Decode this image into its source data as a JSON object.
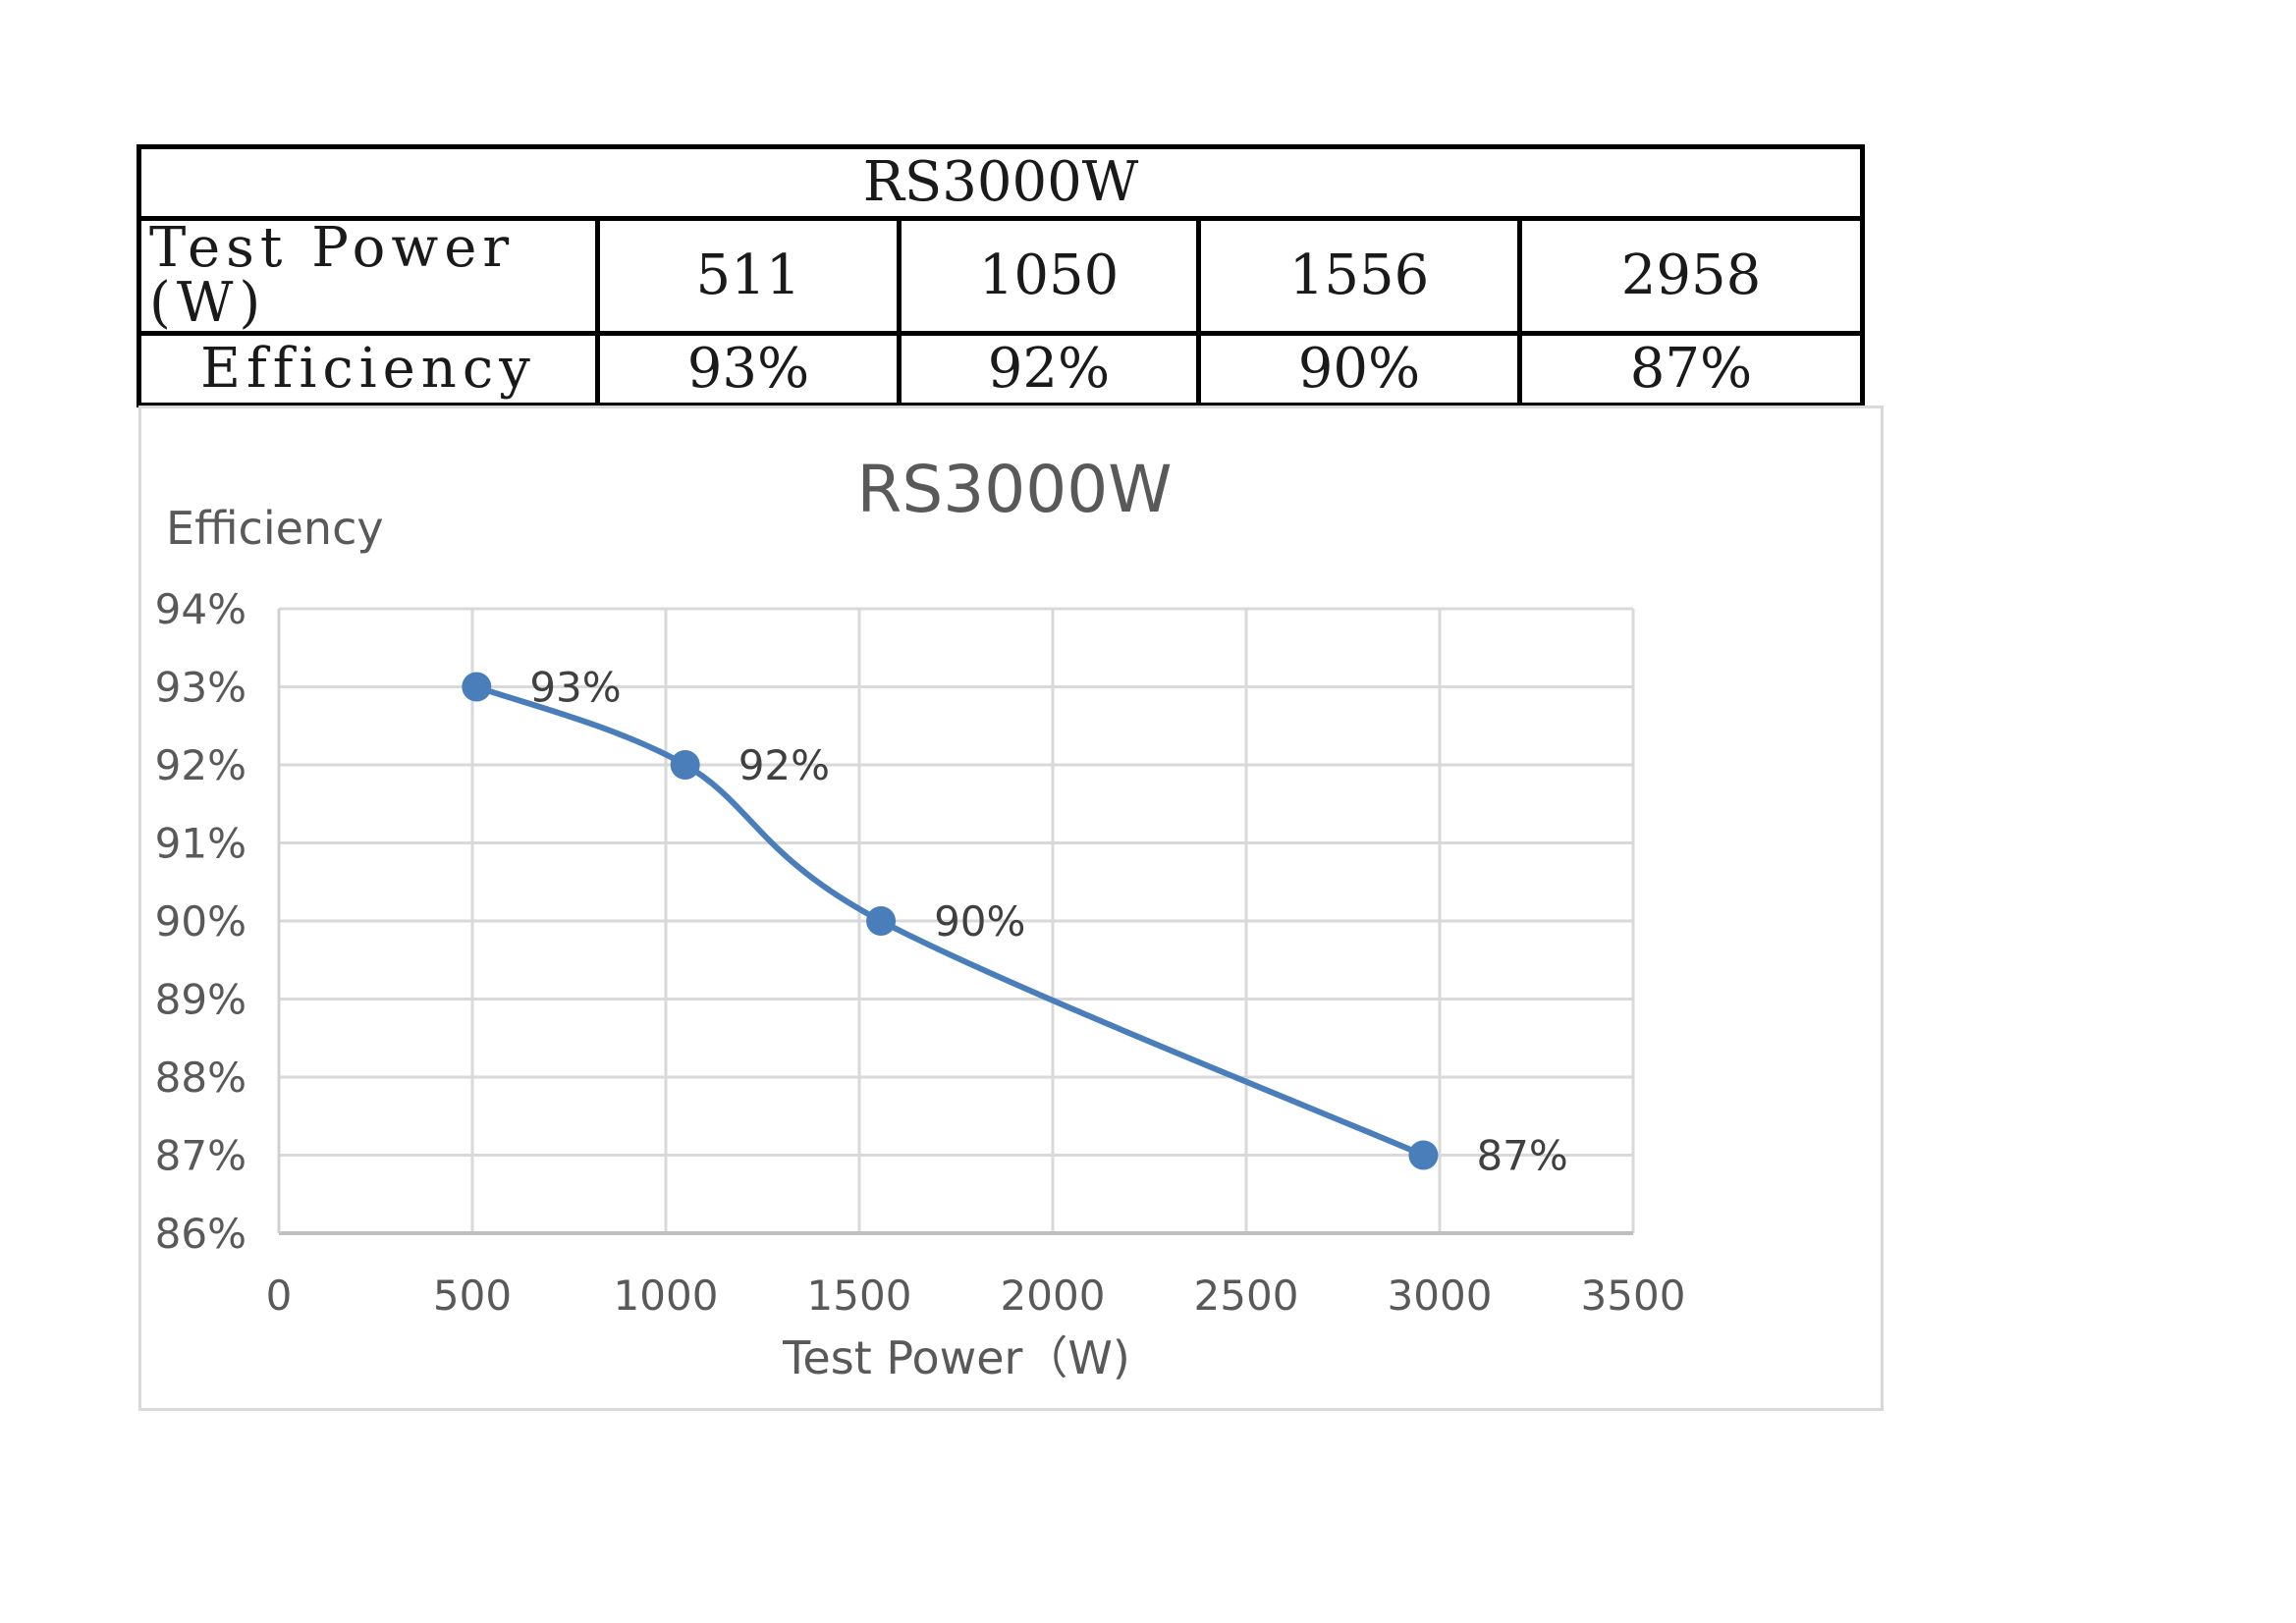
{
  "table": {
    "title": "RS3000W",
    "rows": [
      {
        "label": "Test Power (W)",
        "values": [
          "511",
          "1050",
          "1556",
          "2958"
        ]
      },
      {
        "label": "Efficiency",
        "values": [
          "93%",
          "92%",
          "90%",
          "87%"
        ]
      }
    ]
  },
  "chart_data": {
    "type": "line",
    "title": "RS3000W",
    "xlabel": "Test Power（W)",
    "ylabel": "Efficiency",
    "xlim": [
      0,
      3500
    ],
    "ylim": [
      86,
      94
    ],
    "xticks": [
      0,
      500,
      1000,
      1500,
      2000,
      2500,
      3000,
      3500
    ],
    "yticks": [
      86,
      87,
      88,
      89,
      90,
      91,
      92,
      93,
      94
    ],
    "ytick_suffix": "%",
    "grid": true,
    "legend": "none",
    "series": [
      {
        "x": [
          511,
          1050,
          1556,
          2958
        ],
        "y": [
          93,
          92,
          90,
          87
        ],
        "labels": [
          "93%",
          "92%",
          "90%",
          "87%"
        ],
        "color": "#4a7ebb",
        "smooth": true,
        "markers": true
      }
    ]
  },
  "colors": {
    "series": "#4a7ebb",
    "grid": "#d9d9d9",
    "axis_text": "#595959",
    "title_text": "#595959",
    "label_text": "#404040"
  }
}
